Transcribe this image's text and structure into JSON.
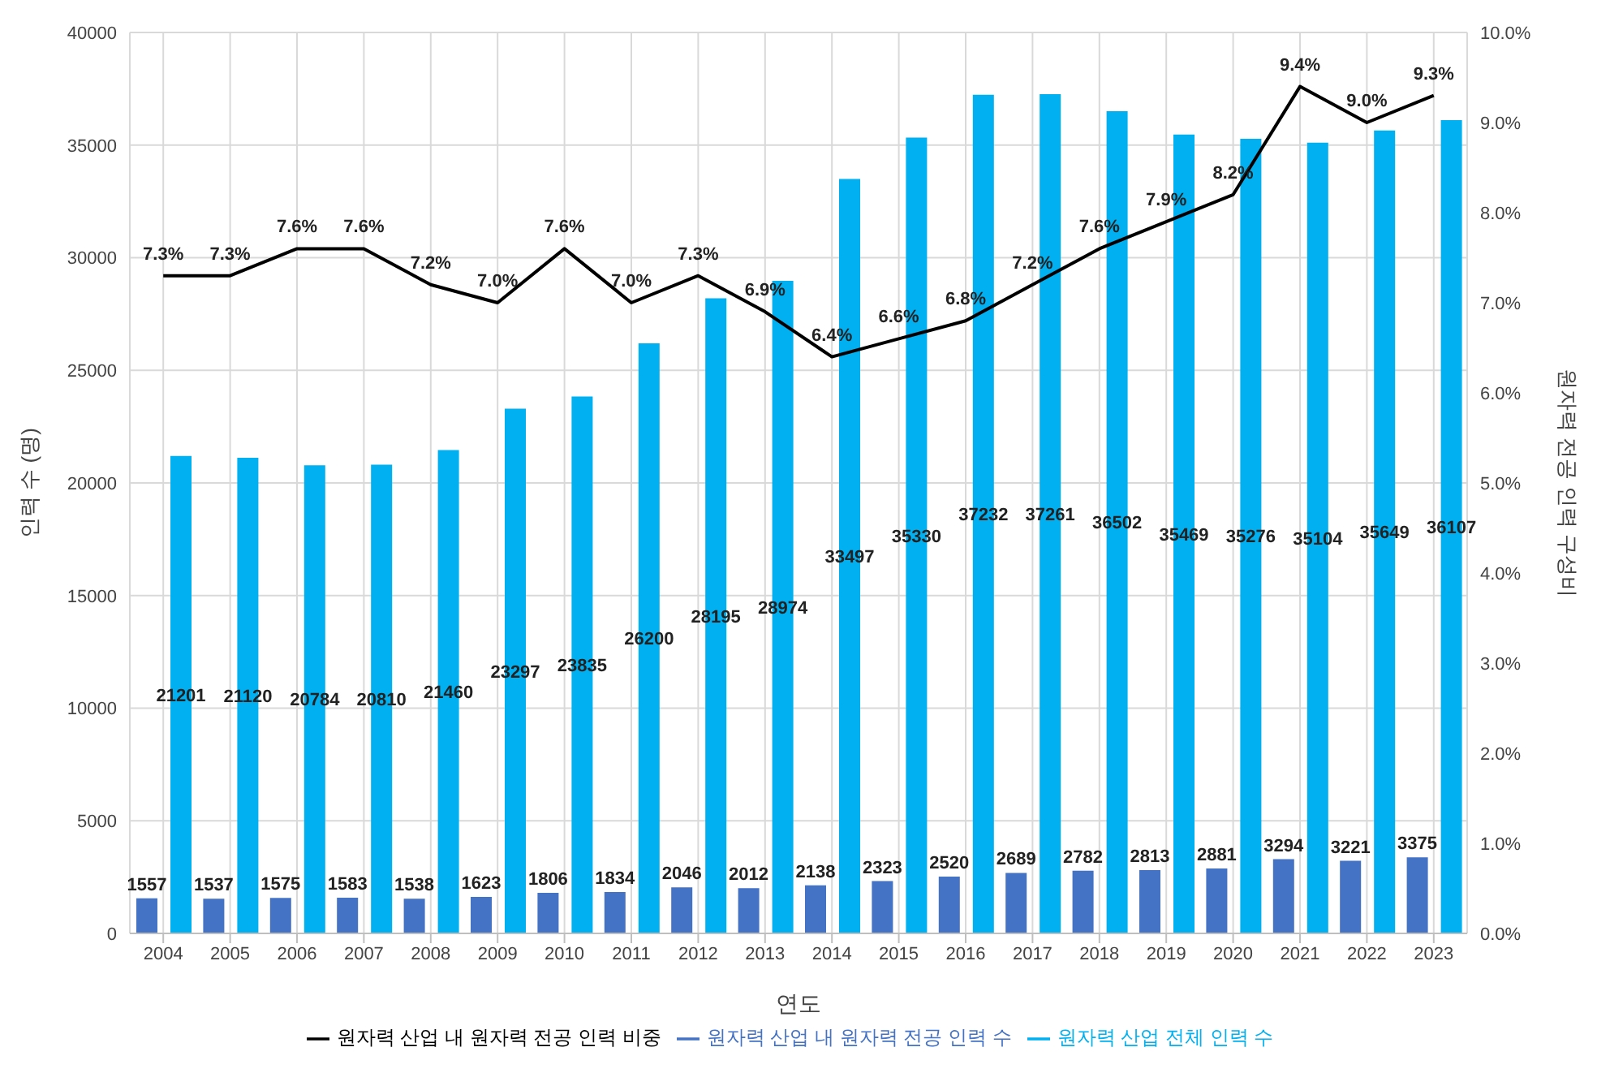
{
  "chart_data": {
    "type": "bar",
    "xlabel": "연도",
    "ylabel": "인력 수 (명)",
    "y2label": "원자력 전공 인력 구성비",
    "categories": [
      "2004",
      "2005",
      "2006",
      "2007",
      "2008",
      "2009",
      "2010",
      "2011",
      "2012",
      "2013",
      "2014",
      "2015",
      "2016",
      "2017",
      "2018",
      "2019",
      "2020",
      "2021",
      "2022",
      "2023"
    ],
    "series": [
      {
        "name": "원자력 산업 내 원자력 전공 인력 수",
        "color": "#4472c4",
        "values": [
          1557,
          1537,
          1575,
          1583,
          1538,
          1623,
          1806,
          1834,
          2046,
          2012,
          2138,
          2323,
          2520,
          2689,
          2782,
          2813,
          2881,
          3294,
          3221,
          3375
        ]
      },
      {
        "name": "원자력 산업 전체 인력 수",
        "color": "#00b0f0",
        "values": [
          21201,
          21120,
          20784,
          20810,
          21460,
          23297,
          23835,
          26200,
          28195,
          28974,
          33497,
          35330,
          37232,
          37261,
          36502,
          35469,
          35276,
          35104,
          35649,
          36107
        ]
      },
      {
        "name": "원자력 산업 내 원자력 전공 인력 비중",
        "type": "line",
        "axis": "y2",
        "color": "#000000",
        "values": [
          7.3,
          7.3,
          7.6,
          7.6,
          7.2,
          7.0,
          7.6,
          7.0,
          7.3,
          6.9,
          6.4,
          6.6,
          6.8,
          7.2,
          7.6,
          7.9,
          8.2,
          9.4,
          9.0,
          9.3
        ],
        "value_labels": [
          "7.3%",
          "7.3%",
          "7.6%",
          "7.6%",
          "7.2%",
          "7.0%",
          "7.6%",
          "7.0%",
          "7.3%",
          "6.9%",
          "6.4%",
          "6.6%",
          "6.8%",
          "7.2%",
          "7.6%",
          "7.9%",
          "8.2%",
          "9.4%",
          "9.0%",
          "9.3%"
        ]
      }
    ],
    "ylim": [
      0,
      40000
    ],
    "yticks": [
      0,
      5000,
      10000,
      15000,
      20000,
      25000,
      30000,
      35000,
      40000
    ],
    "y2lim": [
      0,
      10
    ],
    "y2ticks": [
      {
        "value": 0,
        "label": "0.0%"
      },
      {
        "value": 1,
        "label": "1.0%"
      },
      {
        "value": 2,
        "label": "2.0%"
      },
      {
        "value": 3,
        "label": "3.0%"
      },
      {
        "value": 4,
        "label": "4.0%"
      },
      {
        "value": 5,
        "label": "5.0%"
      },
      {
        "value": 6,
        "label": "6.0%"
      },
      {
        "value": 7,
        "label": "7.0%"
      },
      {
        "value": 8,
        "label": "8.0%"
      },
      {
        "value": 9,
        "label": "9.0%"
      },
      {
        "value": 10,
        "label": "10.0%"
      }
    ],
    "data_labels": true,
    "grid": true,
    "legend": "bottom",
    "marker": "none"
  }
}
